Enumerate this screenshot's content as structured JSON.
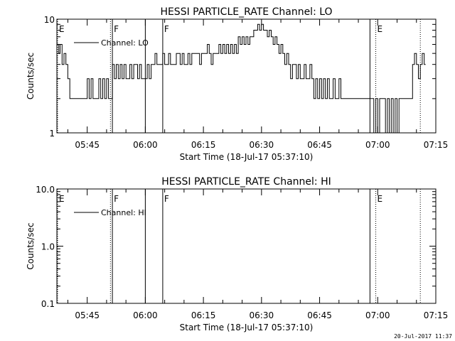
{
  "footer_timestamp": "20-Jul-2017 11:37",
  "chart_data": [
    {
      "type": "line",
      "title": "HESSI PARTICLE_RATE Channel: LO",
      "xlabel": "Start Time (18-Jul-17 05:37:10)",
      "ylabel": "Counts/sec",
      "yscale": "log",
      "xlim": [
        "05:37:10",
        "07:15:00"
      ],
      "ylim": [
        1,
        10
      ],
      "x_ticks": [
        "05:45",
        "06:00",
        "06:15",
        "06:30",
        "06:45",
        "07:00",
        "07:15"
      ],
      "y_ticks": [
        {
          "value": 1,
          "label": "1"
        },
        {
          "value": 10,
          "label": "10"
        }
      ],
      "legend": {
        "label": "Channel: LO",
        "position": "top-left"
      },
      "markers": [
        {
          "time": "05:37:10",
          "label": "E",
          "style": "dotted"
        },
        {
          "time": "05:51:00",
          "label": "",
          "style": "dotted"
        },
        {
          "time": "05:51:30",
          "label": "F",
          "style": "solid"
        },
        {
          "time": "06:00:00",
          "label": "",
          "style": "solid"
        },
        {
          "time": "06:04:30",
          "label": "F",
          "style": "solid"
        },
        {
          "time": "06:58:00",
          "label": "",
          "style": "solid"
        },
        {
          "time": "06:59:30",
          "label": "E",
          "style": "dotted"
        },
        {
          "time": "07:11:00",
          "label": "",
          "style": "dotted"
        }
      ],
      "series": [
        {
          "name": "Channel: LO",
          "gaps": [
            [
              "05:51:00",
              "05:51:30"
            ],
            [
              "06:00:00",
              "06:00:30"
            ],
            [
              "07:07:00",
              "07:09:00"
            ]
          ],
          "points": [
            [
              "05:37:10",
              6.0
            ],
            [
              "05:37:40",
              5.0
            ],
            [
              "05:38:00",
              6.0
            ],
            [
              "05:38:30",
              4.0
            ],
            [
              "05:39:00",
              5.0
            ],
            [
              "05:39:30",
              4.0
            ],
            [
              "05:40:00",
              3.0
            ],
            [
              "05:40:30",
              2.0
            ],
            [
              "05:44:30",
              2.0
            ],
            [
              "05:45:00",
              3.0
            ],
            [
              "05:45:30",
              2.0
            ],
            [
              "05:46:00",
              3.0
            ],
            [
              "05:46:30",
              2.0
            ],
            [
              "05:47:30",
              2.0
            ],
            [
              "05:48:00",
              3.0
            ],
            [
              "05:48:30",
              2.0
            ],
            [
              "05:49:00",
              3.0
            ],
            [
              "05:49:30",
              2.0
            ],
            [
              "05:50:00",
              3.0
            ],
            [
              "05:50:30",
              2.0
            ],
            [
              "05:51:30",
              4.0
            ],
            [
              "05:52:00",
              3.0
            ],
            [
              "05:52:30",
              4.0
            ],
            [
              "05:53:00",
              3.0
            ],
            [
              "05:53:30",
              4.0
            ],
            [
              "05:54:00",
              3.0
            ],
            [
              "05:54:30",
              4.0
            ],
            [
              "05:55:00",
              3.0
            ],
            [
              "05:56:00",
              4.0
            ],
            [
              "05:56:30",
              3.0
            ],
            [
              "05:57:00",
              4.0
            ],
            [
              "05:57:30",
              4.0
            ],
            [
              "05:58:00",
              3.0
            ],
            [
              "05:58:30",
              4.0
            ],
            [
              "05:59:00",
              3.0
            ],
            [
              "06:00:30",
              4.0
            ],
            [
              "06:01:00",
              3.0
            ],
            [
              "06:01:30",
              4.0
            ],
            [
              "06:02:00",
              4.0
            ],
            [
              "06:02:30",
              5.0
            ],
            [
              "06:03:00",
              4.0
            ],
            [
              "06:04:00",
              4.0
            ],
            [
              "06:04:30",
              5.0
            ],
            [
              "06:05:00",
              4.0
            ],
            [
              "06:05:30",
              4.0
            ],
            [
              "06:06:00",
              5.0
            ],
            [
              "06:06:30",
              4.0
            ],
            [
              "06:07:30",
              4.0
            ],
            [
              "06:08:00",
              5.0
            ],
            [
              "06:09:00",
              4.0
            ],
            [
              "06:09:30",
              5.0
            ],
            [
              "06:10:00",
              4.0
            ],
            [
              "06:11:00",
              5.0
            ],
            [
              "06:11:30",
              4.0
            ],
            [
              "06:12:00",
              5.0
            ],
            [
              "06:13:30",
              5.0
            ],
            [
              "06:14:00",
              4.0
            ],
            [
              "06:14:30",
              5.0
            ],
            [
              "06:15:30",
              5.0
            ],
            [
              "06:16:00",
              6.0
            ],
            [
              "06:16:30",
              5.0
            ],
            [
              "06:17:00",
              4.0
            ],
            [
              "06:17:30",
              5.0
            ],
            [
              "06:18:30",
              5.0
            ],
            [
              "06:19:00",
              6.0
            ],
            [
              "06:19:30",
              5.0
            ],
            [
              "06:20:00",
              6.0
            ],
            [
              "06:20:30",
              5.0
            ],
            [
              "06:21:00",
              6.0
            ],
            [
              "06:21:30",
              5.0
            ],
            [
              "06:22:00",
              6.0
            ],
            [
              "06:22:30",
              5.0
            ],
            [
              "06:23:00",
              6.0
            ],
            [
              "06:23:30",
              5.0
            ],
            [
              "06:24:00",
              7.0
            ],
            [
              "06:24:30",
              6.0
            ],
            [
              "06:25:00",
              7.0
            ],
            [
              "06:25:30",
              6.0
            ],
            [
              "06:26:00",
              7.0
            ],
            [
              "06:26:30",
              6.0
            ],
            [
              "06:27:00",
              7.0
            ],
            [
              "06:27:30",
              7.0
            ],
            [
              "06:28:00",
              8.0
            ],
            [
              "06:28:30",
              8.0
            ],
            [
              "06:29:00",
              9.0
            ],
            [
              "06:29:30",
              8.0
            ],
            [
              "06:30:00",
              9.0
            ],
            [
              "06:30:30",
              8.0
            ],
            [
              "06:31:00",
              8.0
            ],
            [
              "06:31:30",
              7.0
            ],
            [
              "06:32:00",
              8.0
            ],
            [
              "06:32:30",
              7.0
            ],
            [
              "06:33:00",
              6.0
            ],
            [
              "06:33:30",
              7.0
            ],
            [
              "06:34:00",
              6.0
            ],
            [
              "06:34:30",
              5.0
            ],
            [
              "06:35:00",
              6.0
            ],
            [
              "06:35:30",
              5.0
            ],
            [
              "06:36:00",
              4.0
            ],
            [
              "06:36:30",
              5.0
            ],
            [
              "06:37:00",
              4.0
            ],
            [
              "06:37:30",
              3.0
            ],
            [
              "06:38:00",
              4.0
            ],
            [
              "06:38:30",
              4.0
            ],
            [
              "06:39:00",
              3.0
            ],
            [
              "06:39:30",
              4.0
            ],
            [
              "06:40:00",
              3.0
            ],
            [
              "06:40:30",
              3.0
            ],
            [
              "06:41:00",
              4.0
            ],
            [
              "06:41:30",
              3.0
            ],
            [
              "06:42:00",
              3.0
            ],
            [
              "06:42:30",
              4.0
            ],
            [
              "06:43:00",
              3.0
            ],
            [
              "06:43:30",
              2.0
            ],
            [
              "06:44:00",
              3.0
            ],
            [
              "06:44:30",
              2.0
            ],
            [
              "06:45:00",
              3.0
            ],
            [
              "06:45:30",
              2.0
            ],
            [
              "06:46:00",
              3.0
            ],
            [
              "06:46:30",
              2.0
            ],
            [
              "06:47:00",
              3.0
            ],
            [
              "06:47:30",
              2.0
            ],
            [
              "06:48:00",
              2.0
            ],
            [
              "06:48:30",
              3.0
            ],
            [
              "06:49:00",
              2.0
            ],
            [
              "06:49:30",
              2.0
            ],
            [
              "06:50:00",
              3.0
            ],
            [
              "06:50:30",
              2.0
            ],
            [
              "06:57:30",
              2.0
            ],
            [
              "06:58:00",
              2.0
            ],
            [
              "06:58:30",
              2.0
            ],
            [
              "06:59:00",
              1.0
            ],
            [
              "06:59:30",
              2.0
            ],
            [
              "07:00:00",
              1.0
            ],
            [
              "07:00:30",
              2.0
            ],
            [
              "07:01:00",
              2.0
            ],
            [
              "07:01:30",
              2.0
            ],
            [
              "07:02:00",
              1.0
            ],
            [
              "07:02:30",
              2.0
            ],
            [
              "07:03:00",
              1.0
            ],
            [
              "07:03:30",
              2.0
            ],
            [
              "07:04:00",
              1.0
            ],
            [
              "07:04:30",
              2.0
            ],
            [
              "07:05:00",
              1.0
            ],
            [
              "07:05:30",
              2.0
            ],
            [
              "07:06:00",
              2.0
            ],
            [
              "07:06:30",
              2.0
            ],
            [
              "07:09:00",
              4.0
            ],
            [
              "07:09:30",
              5.0
            ],
            [
              "07:10:00",
              4.0
            ],
            [
              "07:10:30",
              3.0
            ],
            [
              "07:11:00",
              4.0
            ],
            [
              "07:11:30",
              5.0
            ],
            [
              "07:12:00",
              4.0
            ]
          ]
        }
      ]
    },
    {
      "type": "line",
      "title": "HESSI PARTICLE_RATE Channel: HI",
      "xlabel": "Start Time (18-Jul-17 05:37:10)",
      "ylabel": "Counts/sec",
      "yscale": "log",
      "xlim": [
        "05:37:10",
        "07:15:00"
      ],
      "ylim": [
        0.1,
        10.0
      ],
      "x_ticks": [
        "05:45",
        "06:00",
        "06:15",
        "06:30",
        "06:45",
        "07:00",
        "07:15"
      ],
      "y_ticks": [
        {
          "value": 0.1,
          "label": "0.1"
        },
        {
          "value": 1.0,
          "label": "1.0"
        },
        {
          "value": 10.0,
          "label": "10.0"
        }
      ],
      "legend": {
        "label": "Channel: HI",
        "position": "top-left"
      },
      "markers": [
        {
          "time": "05:37:10",
          "label": "E",
          "style": "dotted"
        },
        {
          "time": "05:51:00",
          "label": "",
          "style": "dotted"
        },
        {
          "time": "05:51:30",
          "label": "F",
          "style": "solid"
        },
        {
          "time": "06:00:00",
          "label": "",
          "style": "solid"
        },
        {
          "time": "06:04:30",
          "label": "F",
          "style": "solid"
        },
        {
          "time": "06:58:00",
          "label": "",
          "style": "solid"
        },
        {
          "time": "06:59:30",
          "label": "E",
          "style": "dotted"
        },
        {
          "time": "07:11:00",
          "label": "",
          "style": "dotted"
        }
      ],
      "series": [
        {
          "name": "Channel: HI",
          "points": []
        }
      ]
    }
  ]
}
